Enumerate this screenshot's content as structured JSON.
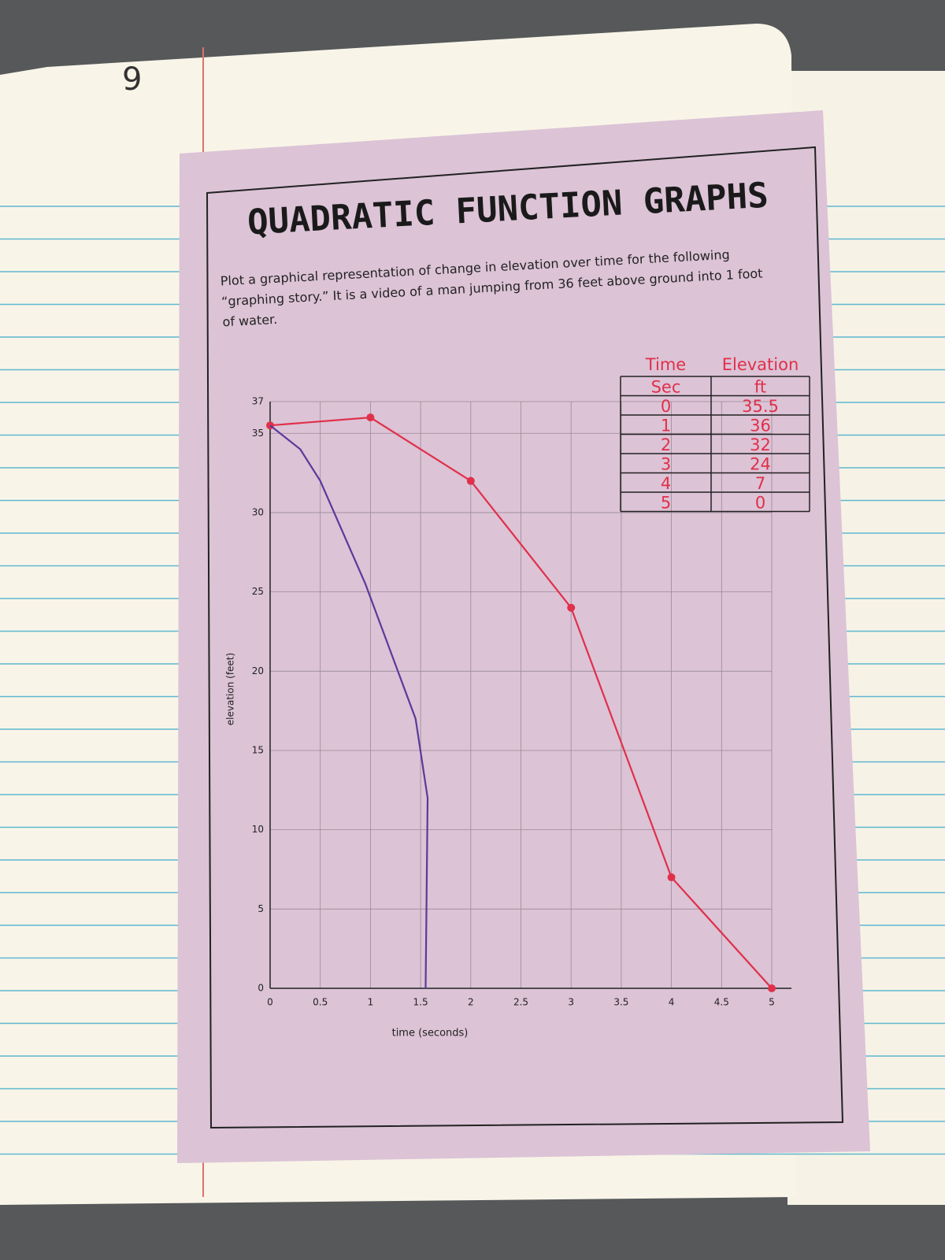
{
  "page_number": "9",
  "title": "QUADRATIC FUNCTION GRAPHS",
  "instructions": [
    "Plot a graphical representation of change in elevation over time for the following",
    "“graphing story.”  It is a video of a man jumping from 36 feet above ground into 1 foot",
    "of water."
  ],
  "table": {
    "headers": [
      "Time",
      "Elevation"
    ],
    "units": [
      "Sec",
      "ft"
    ],
    "rows": [
      [
        "0",
        "35.5"
      ],
      [
        "1",
        "36"
      ],
      [
        "2",
        "32"
      ],
      [
        "3",
        "24"
      ],
      [
        "4",
        "7"
      ],
      [
        "5",
        "0"
      ]
    ]
  },
  "chart_data": {
    "type": "line",
    "xlabel": "time (seconds)",
    "ylabel": "elevation (feet)",
    "xlim": [
      0,
      5
    ],
    "ylim": [
      0,
      37
    ],
    "xticks": [
      0,
      0.5,
      1,
      1.5,
      2,
      2.5,
      3,
      3.5,
      4,
      4.5,
      5
    ],
    "yticks": [
      0,
      5,
      10,
      15,
      20,
      25,
      30,
      35,
      37
    ],
    "grid": true,
    "series": [
      {
        "color": "#e0304a",
        "markers": true,
        "x": [
          0,
          1,
          2,
          3,
          4,
          5
        ],
        "values": [
          35.5,
          36,
          32,
          24,
          7,
          0
        ]
      },
      {
        "color": "#5a3a9a",
        "markers": false,
        "x": [
          0,
          0.3,
          0.5,
          0.95,
          1.45,
          1.57,
          1.55
        ],
        "values": [
          35.5,
          34,
          32,
          25.5,
          17,
          12,
          0
        ]
      }
    ]
  }
}
